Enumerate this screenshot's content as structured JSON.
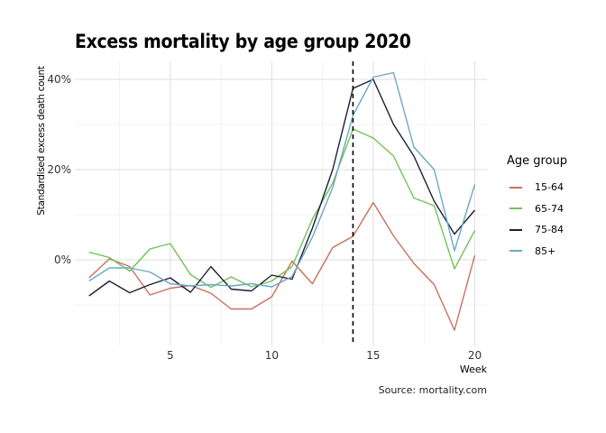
{
  "title": "Excess mortality by age group 2020",
  "caption": "Source: mortality.com",
  "chart_data": {
    "type": "line",
    "title": "Excess mortality by age group 2020",
    "xlabel": "Week",
    "ylabel": "Standardised excess death count",
    "x": [
      1,
      2,
      3,
      4,
      5,
      6,
      7,
      8,
      9,
      10,
      11,
      12,
      13,
      14,
      15,
      16,
      17,
      18,
      19,
      20
    ],
    "xlim": [
      0.3,
      20.6
    ],
    "ylim": [
      -0.19,
      0.44
    ],
    "x_ticks": [
      5,
      10,
      15,
      20
    ],
    "x_tick_labels": [
      "5",
      "10",
      "15",
      "20"
    ],
    "y_ticks": [
      0,
      0.2,
      0.4
    ],
    "y_tick_labels": [
      "0%",
      "20%",
      "40%"
    ],
    "grid": true,
    "reference_line": {
      "x": 14,
      "style": "dashed"
    },
    "legend_title": "Age group",
    "legend_position": "right",
    "series": [
      {
        "name": "15-64",
        "color": "#c8705a",
        "values": [
          -0.04,
          0.002,
          -0.015,
          -0.078,
          -0.063,
          -0.057,
          -0.074,
          -0.109,
          -0.109,
          -0.082,
          -0.003,
          -0.053,
          0.027,
          0.052,
          0.127,
          0.053,
          -0.008,
          -0.055,
          -0.156,
          0.01
        ]
      },
      {
        "name": "65-74",
        "color": "#72c257",
        "values": [
          0.017,
          0.005,
          -0.025,
          0.024,
          0.036,
          -0.033,
          -0.061,
          -0.038,
          -0.06,
          -0.047,
          -0.015,
          0.09,
          0.17,
          0.29,
          0.27,
          0.23,
          0.137,
          0.12,
          -0.02,
          0.065
        ]
      },
      {
        "name": "75-84",
        "color": "#1e1e3a",
        "values": [
          -0.08,
          -0.047,
          -0.073,
          -0.055,
          -0.04,
          -0.072,
          -0.015,
          -0.065,
          -0.069,
          -0.034,
          -0.043,
          0.07,
          0.2,
          0.38,
          0.4,
          0.3,
          0.23,
          0.13,
          0.057,
          0.11
        ]
      },
      {
        "name": "85+",
        "color": "#6aa8c8",
        "values": [
          -0.047,
          -0.018,
          -0.018,
          -0.027,
          -0.053,
          -0.058,
          -0.055,
          -0.058,
          -0.053,
          -0.06,
          -0.037,
          0.05,
          0.16,
          0.32,
          0.405,
          0.415,
          0.25,
          0.2,
          0.02,
          0.167
        ]
      }
    ]
  }
}
